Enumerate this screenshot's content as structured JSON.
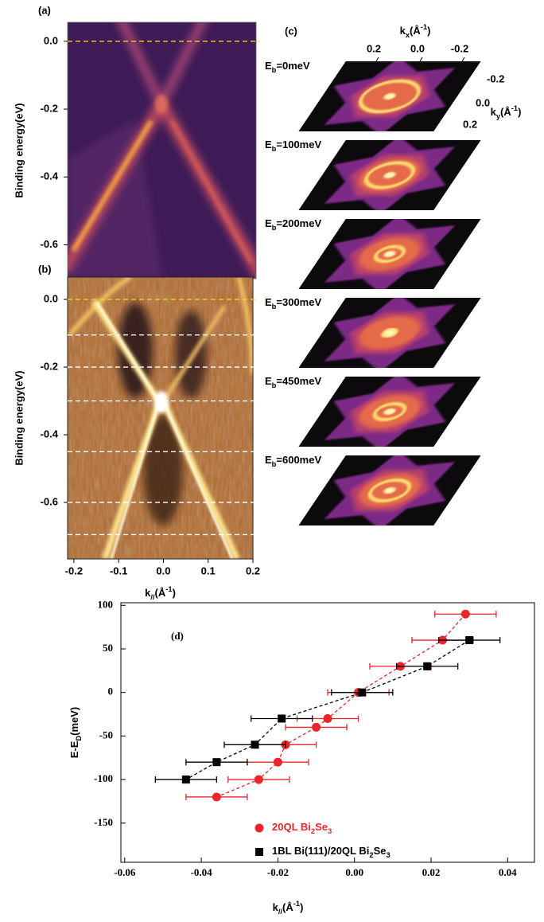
{
  "chart_data": [
    {
      "type": "image",
      "panel_label": "(a)",
      "ylabel": "Binding energy(eV)",
      "ylim": [
        -0.7,
        0.056
      ],
      "yticks": [
        {
          "value": 0,
          "label": "0.0"
        },
        -0.2,
        -0.4,
        -0.6
      ],
      "hlines": [
        {
          "value": 0,
          "color": "#f5d020"
        }
      ]
    },
    {
      "type": "image",
      "panel_label": "(b)",
      "ylabel": "Binding energy(eV)",
      "ylim": [
        -0.767,
        0.066
      ],
      "yticks": [
        {
          "value": 0,
          "label": "0.0"
        },
        -0.2,
        -0.4,
        -0.6
      ],
      "xlim": [
        -0.214,
        0.2
      ],
      "xticks": [
        -0.2,
        -0.1,
        {
          "value": 0,
          "label": "0.0"
        },
        0.1,
        0.2
      ],
      "xlabel": [
        {
          "t": "k"
        },
        {
          "sub": "//"
        },
        {
          "t": "(Å"
        },
        {
          "sup": "-1"
        },
        {
          "t": ")"
        }
      ],
      "hlines": [
        {
          "value": 0,
          "color": "#f5d020"
        },
        {
          "value": -0.105,
          "color": "#ffffff"
        },
        {
          "value": -0.2,
          "color": "#ffffff"
        },
        {
          "value": -0.3,
          "color": "#ffffff"
        },
        {
          "value": -0.45,
          "color": "#ffffff"
        },
        {
          "value": -0.6,
          "color": "#ffffff"
        },
        {
          "value": -0.695,
          "color": "#ffffff"
        }
      ]
    },
    {
      "type": "maps",
      "panel_label": "(c)",
      "kx_label": [
        {
          "t": "k"
        },
        {
          "sub": "x"
        },
        {
          "t": "(Å"
        },
        {
          "sup": "-1"
        },
        {
          "t": ")"
        }
      ],
      "kx_ticks": [
        "0.2",
        "0.0",
        "-0.2"
      ],
      "ky_label": [
        {
          "t": "k"
        },
        {
          "sub": "y"
        },
        {
          "t": "(Å"
        },
        {
          "sup": "-1"
        },
        {
          "t": ")"
        }
      ],
      "ky_ticks": [
        "-0.2",
        "0.0",
        "0.2"
      ],
      "maps": [
        [
          {
            "t": "E"
          },
          {
            "sub": "b"
          },
          {
            "t": "=0meV"
          }
        ],
        [
          {
            "t": "E"
          },
          {
            "sub": "b"
          },
          {
            "t": "=100meV"
          }
        ],
        [
          {
            "t": "E"
          },
          {
            "sub": "b"
          },
          {
            "t": "=200meV"
          }
        ],
        [
          {
            "t": "E"
          },
          {
            "sub": "b"
          },
          {
            "t": "=300meV"
          }
        ],
        [
          {
            "t": "E"
          },
          {
            "sub": "b"
          },
          {
            "t": "=450meV"
          }
        ],
        [
          {
            "t": "E"
          },
          {
            "sub": "b"
          },
          {
            "t": "=600meV"
          }
        ]
      ]
    },
    {
      "type": "scatter",
      "panel_label": "(d)",
      "xlabel": [
        {
          "t": "k"
        },
        {
          "sub": "//"
        },
        {
          "t": "(Å"
        },
        {
          "sup": "-1"
        },
        {
          "t": ")"
        }
      ],
      "ylabel": [
        {
          "t": "E-E"
        },
        {
          "sub": "D"
        },
        {
          "t": "(meV)"
        }
      ],
      "xlim": [
        -0.061,
        0.047
      ],
      "xticks": [
        -0.06,
        -0.04,
        -0.02,
        {
          "value": 0,
          "label": "0.00"
        },
        0.02,
        0.04
      ],
      "ylim": [
        -195,
        103
      ],
      "yticks": [
        100,
        50,
        0,
        -50,
        -100,
        -150
      ],
      "series": [
        {
          "name": [
            {
              "t": "20QL Bi"
            },
            {
              "sub": "2"
            },
            {
              "t": "Se"
            },
            {
              "sub": "3"
            }
          ],
          "color": "#e8262b",
          "marker": "circle",
          "line_style": "dashed",
          "x": [
            0.029,
            0.023,
            0.012,
            0.001,
            -0.007,
            -0.01,
            -0.018,
            -0.02,
            -0.025,
            -0.036
          ],
          "values": [
            90,
            60,
            30,
            0,
            -30,
            -40,
            -60,
            -80,
            -100,
            -120
          ],
          "xerr": [
            0.008,
            0.008,
            0.008,
            0.008,
            0.008,
            0.008,
            0.008,
            0.008,
            0.008,
            0.008
          ]
        },
        {
          "name": [
            {
              "t": "1BL Bi(111)/20QL Bi"
            },
            {
              "sub": "2"
            },
            {
              "t": "Se"
            },
            {
              "sub": "3"
            }
          ],
          "color": "#000000",
          "marker": "square",
          "line_style": "dashed",
          "x": [
            0.03,
            0.019,
            0.002,
            -0.019,
            -0.026,
            -0.036,
            -0.044
          ],
          "values": [
            60,
            30,
            0,
            -30,
            -60,
            -80,
            -100
          ],
          "xerr": [
            0.008,
            0.008,
            0.008,
            0.008,
            0.008,
            0.008,
            0.008
          ]
        }
      ]
    }
  ]
}
